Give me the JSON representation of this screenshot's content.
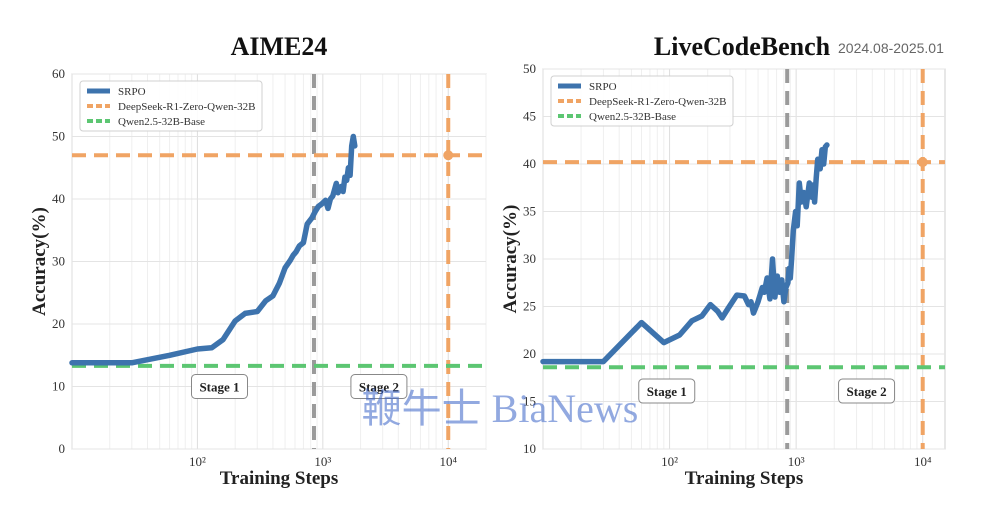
{
  "chart_data": [
    {
      "type": "line",
      "title": "AIME24",
      "subtitle": "",
      "xlabel": "Training Steps",
      "ylabel": "Accuracy(%)",
      "xscale": "log",
      "xlim": [
        10,
        20000
      ],
      "ylim": [
        0,
        60
      ],
      "yticks": [
        0,
        10,
        20,
        30,
        40,
        50,
        60
      ],
      "xticks": [
        {
          "value": 100,
          "label": "10²"
        },
        {
          "value": 1000,
          "label": "10³"
        },
        {
          "value": 10000,
          "label": "10⁴"
        }
      ],
      "grid": true,
      "legend_position": "top-left",
      "series": [
        {
          "name": "SRPO",
          "color": "#3d73ad",
          "style": "solid",
          "x": [
            10,
            30,
            60,
            100,
            130,
            160,
            200,
            240,
            300,
            350,
            400,
            450,
            500,
            550,
            580,
            610,
            650,
            700,
            750,
            820,
            870,
            920,
            980,
            1050,
            1100,
            1150,
            1200,
            1280,
            1320,
            1400,
            1450,
            1500,
            1550,
            1600,
            1650,
            1700,
            1750,
            1800
          ],
          "y": [
            13.8,
            13.8,
            15,
            16,
            16.2,
            17.5,
            20.5,
            21.7,
            22,
            23.7,
            24.5,
            26.5,
            29,
            30.2,
            31,
            31.5,
            32.5,
            33,
            36,
            37,
            38,
            38.8,
            39.2,
            39.8,
            38.5,
            40,
            40.5,
            42.5,
            41,
            42,
            41.2,
            43.5,
            43,
            45,
            43.8,
            48.5,
            50,
            48.5
          ]
        },
        {
          "name": "DeepSeek-R1-Zero-Qwen-32B",
          "color": "#f0a464",
          "style": "dashed",
          "hline": 47,
          "marker": {
            "x": 10000,
            "y": 47
          }
        },
        {
          "name": "Qwen2.5-32B-Base",
          "color": "#5cc672",
          "style": "dashed",
          "hline": 13.3
        }
      ],
      "vlines": [
        {
          "x": 850,
          "color": "#9a9a9a"
        },
        {
          "x": 10000,
          "color": "#f0a464"
        }
      ],
      "annotations": [
        {
          "text": "Stage 1",
          "x": 150,
          "y": 10
        },
        {
          "text": "Stage 2",
          "x": 2800,
          "y": 10
        }
      ]
    },
    {
      "type": "line",
      "title": "LiveCodeBench",
      "subtitle": "2024.08-2025.01",
      "xlabel": "Training Steps",
      "ylabel": "Accuracy(%)",
      "xscale": "log",
      "xlim": [
        10,
        15000
      ],
      "ylim": [
        10,
        50
      ],
      "yticks": [
        10,
        15,
        20,
        25,
        30,
        35,
        40,
        45,
        50
      ],
      "xticks": [
        {
          "value": 100,
          "label": "10²"
        },
        {
          "value": 1000,
          "label": "10³"
        },
        {
          "value": 10000,
          "label": "10⁴"
        }
      ],
      "grid": true,
      "legend_position": "top-left",
      "series": [
        {
          "name": "SRPO",
          "color": "#3d73ad",
          "style": "solid",
          "x": [
            10,
            30,
            60,
            90,
            120,
            150,
            180,
            210,
            240,
            260,
            290,
            340,
            390,
            420,
            440,
            460,
            500,
            540,
            560,
            590,
            620,
            650,
            680,
            710,
            740,
            770,
            800,
            830,
            860,
            880,
            900,
            920,
            950,
            990,
            1020,
            1060,
            1100,
            1150,
            1200,
            1270,
            1330,
            1370,
            1400,
            1440,
            1480,
            1550,
            1600,
            1650,
            1700,
            1750
          ],
          "y": [
            19.2,
            19.2,
            23.3,
            21.2,
            22,
            23.5,
            24,
            25.2,
            24.5,
            23.8,
            24.8,
            26.2,
            26.1,
            25.2,
            25.5,
            24.3,
            25.5,
            27,
            26.5,
            28,
            25.8,
            30,
            26,
            28.2,
            26.5,
            27.8,
            25.5,
            27,
            27.5,
            29,
            28,
            30,
            33,
            35,
            33.5,
            38,
            36,
            37,
            35.5,
            38,
            36.5,
            37.8,
            36,
            38.5,
            40.5,
            39.5,
            41.5,
            40,
            41.8,
            42
          ]
        },
        {
          "name": "DeepSeek-R1-Zero-Qwen-32B",
          "color": "#f0a464",
          "style": "dashed",
          "hline": 40.2,
          "marker": {
            "x": 10000,
            "y": 40.2
          }
        },
        {
          "name": "Qwen2.5-32B-Base",
          "color": "#5cc672",
          "style": "dashed",
          "hline": 18.6
        }
      ],
      "vlines": [
        {
          "x": 850,
          "color": "#9a9a9a"
        },
        {
          "x": 10000,
          "color": "#f0a464"
        }
      ],
      "annotations": [
        {
          "text": "Stage 1",
          "x": 95,
          "y": 16.1
        },
        {
          "text": "Stage 2",
          "x": 3600,
          "y": 16.1
        }
      ]
    }
  ],
  "watermark": {
    "text": "鞭牛士 BiaNews"
  }
}
